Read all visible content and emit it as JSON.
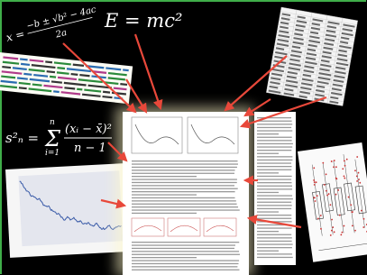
{
  "formulas": {
    "quadratic": {
      "lhs": "x =",
      "numerator": "−b ± √b² − 4ac",
      "denominator": "2a"
    },
    "energy": "E = mc²",
    "variance": {
      "lhs": "s²ₙ =",
      "sum": "Σ",
      "sum_upper": "n",
      "sum_lower": "i=1",
      "numerator": "(xᵢ − x̄)²",
      "denominator": "n − 1"
    }
  }
}
